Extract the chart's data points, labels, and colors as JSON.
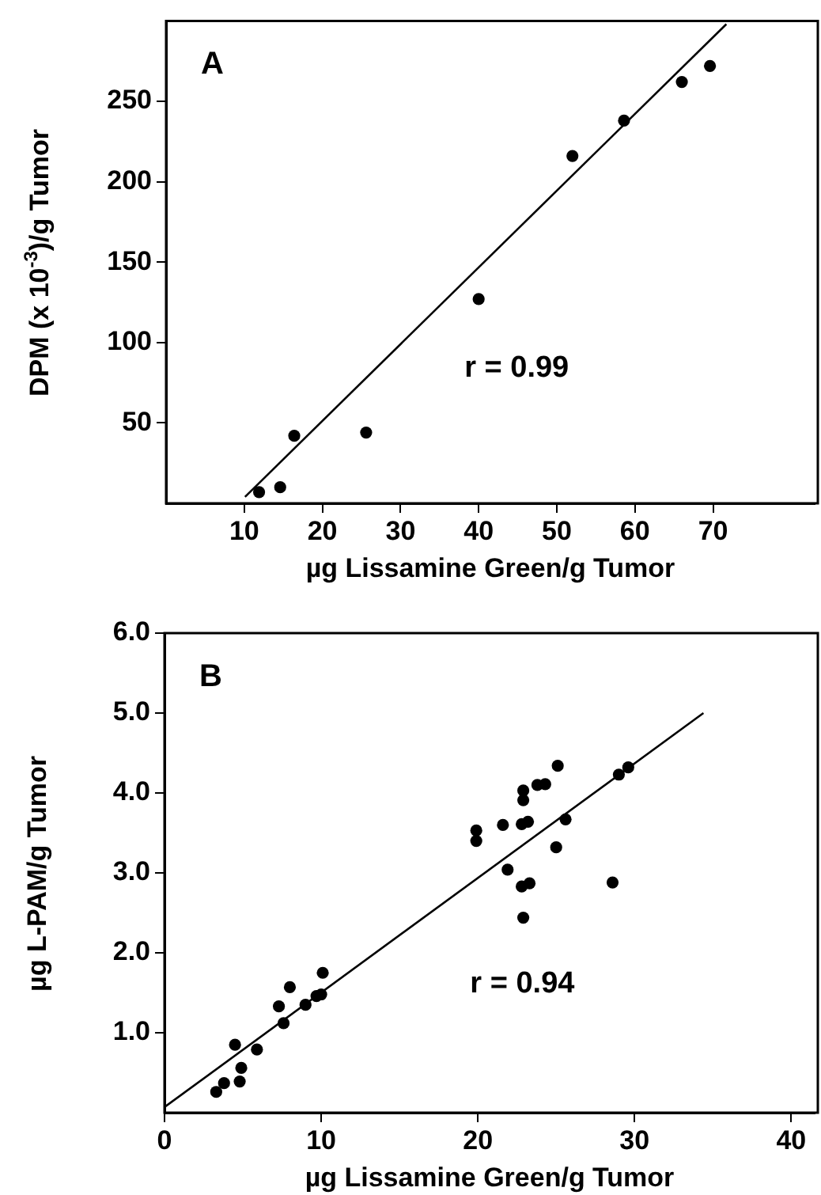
{
  "chart_data": [
    {
      "type": "scatter",
      "title": "A",
      "xlabel": "µg Lissamine Green/g Tumor",
      "ylabel": "DPM (x 10$^{-3}$)/g Tumor",
      "annotations": [
        "r = 0.99"
      ],
      "xlim": [
        0,
        83
      ],
      "ylim": [
        0,
        300
      ],
      "xticks": [
        10,
        20,
        30,
        40,
        50,
        60,
        70
      ],
      "yticks": [
        50,
        100,
        150,
        200,
        250
      ],
      "grid": false,
      "series": [
        {
          "marker": "circle",
          "color": "#000000",
          "x": [
            11.9,
            14.6,
            16.4,
            25.6,
            40,
            52,
            58.6,
            66,
            69.6
          ],
          "values": [
            7,
            10,
            42,
            44,
            127,
            216,
            238,
            262,
            272
          ]
        },
        {
          "type": "line",
          "marker": "none",
          "color": "#000000",
          "x": [
            10.1,
            71.7
          ],
          "values": [
            4,
            298
          ]
        }
      ]
    },
    {
      "type": "scatter",
      "title": "B",
      "xlabel": "µg Lissamine Green/g Tumor",
      "ylabel": "µg L-PAM/g Tumor",
      "annotations": [
        "r = 0.94"
      ],
      "xlim": [
        0,
        41.5
      ],
      "ylim": [
        0,
        6
      ],
      "xticks": [
        0,
        10,
        20,
        30,
        40
      ],
      "yticks": [
        {
          "value": 1,
          "label": "1.0"
        },
        {
          "value": 2,
          "label": "2.0"
        },
        {
          "value": 3,
          "label": "3.0"
        },
        {
          "value": 4,
          "label": "4.0"
        },
        {
          "value": 5,
          "label": "5.0"
        },
        {
          "value": 6,
          "label": "6.0"
        }
      ],
      "grid": false,
      "series": [
        {
          "marker": "circle",
          "color": "#000000",
          "x": [
            3.3,
            3.8,
            4.8,
            4.5,
            4.9,
            5.9,
            7.3,
            7.6,
            8.0,
            9.0,
            9.7,
            10.0,
            10.1,
            19.9,
            19.9,
            21.6,
            21.9,
            22.8,
            23.3,
            22.9,
            22.8,
            23.2,
            22.9,
            22.9,
            23.8,
            24.3,
            25.1,
            25.0,
            25.6,
            28.6,
            29.0,
            29.6
          ],
          "values": [
            0.26,
            0.37,
            0.39,
            0.85,
            0.56,
            0.79,
            1.33,
            1.12,
            1.57,
            1.35,
            1.46,
            1.48,
            1.75,
            3.53,
            3.4,
            3.6,
            3.04,
            2.83,
            2.87,
            2.44,
            3.61,
            3.64,
            3.91,
            4.03,
            4.1,
            4.11,
            4.34,
            3.32,
            3.67,
            2.88,
            4.23,
            4.32
          ]
        },
        {
          "type": "line",
          "marker": "none",
          "color": "#000000",
          "x": [
            0,
            34.4
          ],
          "values": [
            0.07,
            5.0
          ]
        }
      ]
    }
  ]
}
